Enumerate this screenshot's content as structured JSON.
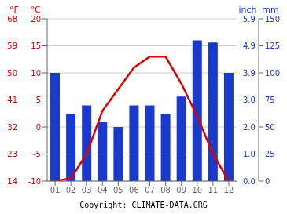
{
  "chart_data": {
    "type": "combo",
    "categories": [
      "01",
      "02",
      "03",
      "04",
      "05",
      "06",
      "07",
      "08",
      "09",
      "10",
      "11",
      "12"
    ],
    "series": [
      {
        "type": "bar",
        "color": "#1a3acc",
        "axis": "y2",
        "values": [
          100,
          62,
          70,
          55,
          50,
          70,
          70,
          62,
          78,
          130,
          128,
          100
        ]
      },
      {
        "type": "line",
        "color": "#dd0000",
        "values": [
          -10.0,
          -9.5,
          -5.0,
          3.0,
          7.0,
          11.0,
          13.0,
          13.0,
          8.0,
          2.0,
          -5.0,
          -10.0
        ]
      }
    ],
    "ylabel": "°C",
    "ylim": [
      -10,
      20
    ],
    "yticks": [
      -10,
      -5,
      0,
      5,
      10,
      15,
      20
    ],
    "ylabel_f": "°F",
    "yticks_f": [
      {
        "value": -10,
        "label": "14"
      },
      {
        "value": -5,
        "label": "23"
      },
      {
        "value": 0,
        "label": "32"
      },
      {
        "value": 5,
        "label": "41"
      },
      {
        "value": 10,
        "label": "50"
      },
      {
        "value": 15,
        "label": "59"
      },
      {
        "value": 20,
        "label": "68"
      }
    ],
    "y2label": "mm",
    "y2lim": [
      0,
      150
    ],
    "y2ticks": [
      0,
      25,
      50,
      75,
      100,
      125,
      150
    ],
    "y2label_inch": "inch",
    "y2ticks_inch": [
      {
        "value": 0,
        "label": "0.0"
      },
      {
        "value": 25,
        "label": "1.0"
      },
      {
        "value": 50,
        "label": "2.0"
      },
      {
        "value": 75,
        "label": "3.0"
      },
      {
        "value": 100,
        "label": "3.9"
      },
      {
        "value": 125,
        "label": "4.9"
      },
      {
        "value": 150,
        "label": "5.9"
      }
    ],
    "annotation": "Copyright: CLIMATE-DATA.ORG",
    "grid": true
  }
}
